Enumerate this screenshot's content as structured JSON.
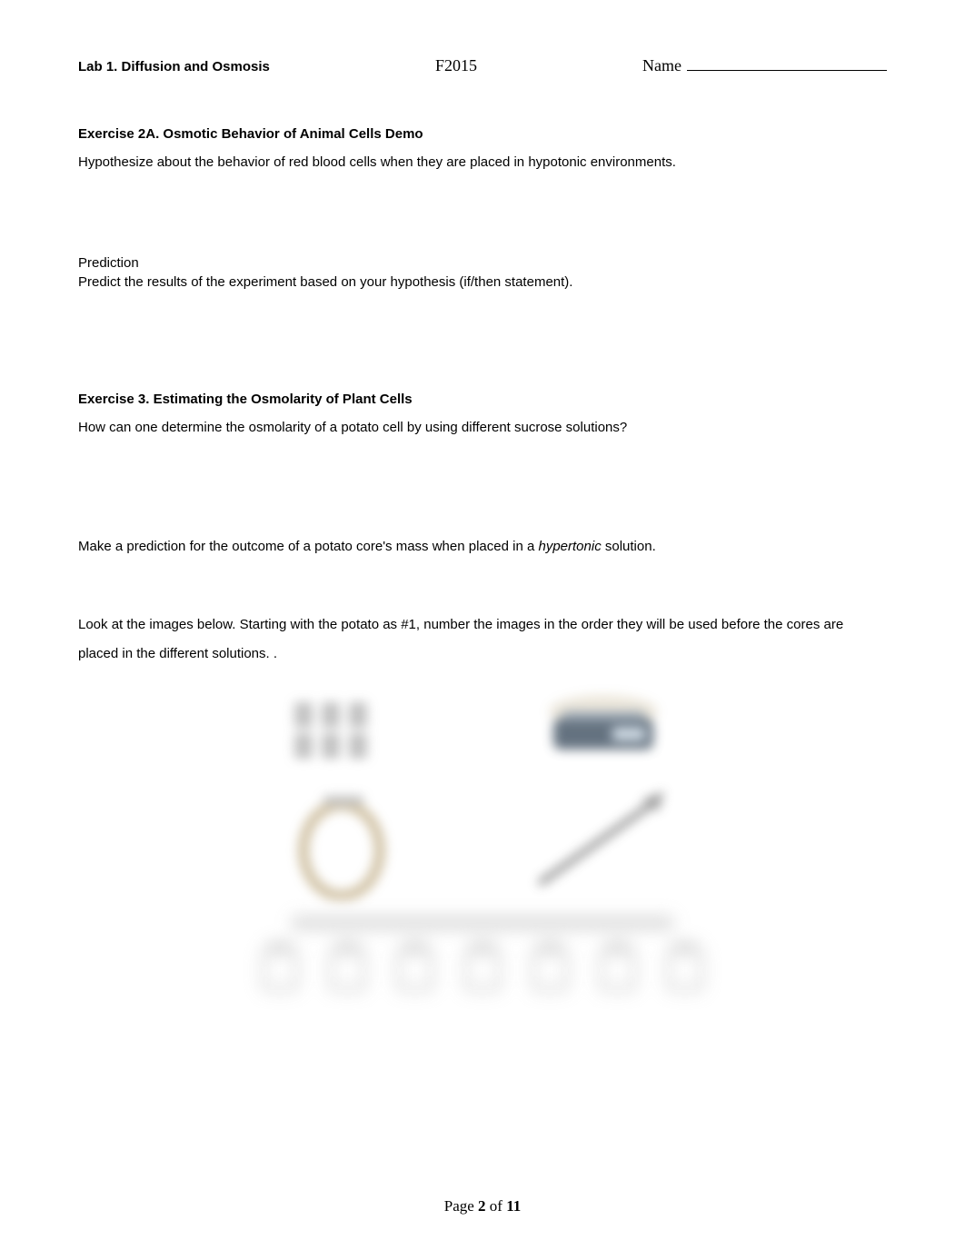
{
  "header": {
    "lab_title": "Lab 1. Diffusion and Osmosis",
    "term": "F2015",
    "name_label": "Name"
  },
  "exercise2a": {
    "heading": "Exercise 2A. Osmotic Behavior of Animal Cells Demo",
    "hypothesis_prompt": "Hypothesize about the behavior of red blood cells when they are placed in hypotonic environments.",
    "prediction_label": "Prediction",
    "prediction_prompt": "Predict the results of the experiment based on your hypothesis (if/then statement)."
  },
  "exercise3": {
    "heading": "Exercise 3. Estimating the Osmolarity of Plant Cells",
    "question1": "How can one determine the osmolarity of a potato cell by using different sucrose solutions?",
    "prediction_pre": "Make a prediction for the outcome of a potato core's mass when placed in a ",
    "prediction_italic": "hypertonic",
    "prediction_post": " solution.",
    "image_instruction": "Look at the images below.   Starting with the potato as #1, number the images in the order they will be used before the cores are placed in the different solutions.  ."
  },
  "images": {
    "row1": {
      "tubes_color": "#b8b8b8",
      "scale_body_color": "#4a5a6a",
      "scale_platform_color": "#8a98a6"
    },
    "row2": {
      "potato_color": "#c9b896",
      "scalpel_color": "#8a8a8a"
    },
    "caption_bar_color": "#cfcfcf",
    "beaker_count": 7,
    "beaker_outline": "#c9c9c9"
  },
  "footer": {
    "pre": "Page ",
    "current": "2",
    "mid": " of ",
    "total": "11"
  },
  "colors": {
    "text": "#000000",
    "background": "#ffffff"
  },
  "fonts": {
    "body_family": "Arial",
    "serif_family": "Times New Roman",
    "heading_size_pt": 11,
    "body_size_pt": 11,
    "serif_size_pt": 13
  }
}
